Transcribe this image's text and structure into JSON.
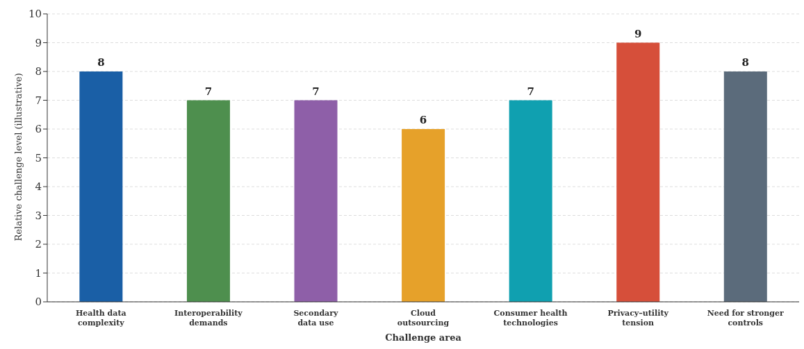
{
  "chart_data": {
    "type": "bar",
    "xlabel": "Challenge area",
    "ylabel": "Relative challenge level (illustrative)",
    "categories": [
      "Health data\ncomplexity",
      "Interoperability\ndemands",
      "Secondary\ndata use",
      "Cloud\noutsourcing",
      "Consumer health\ntechnologies",
      "Privacy–utility\ntension",
      "Need for stronger\ncontrols"
    ],
    "values": [
      8,
      7,
      7,
      6,
      7,
      9,
      8
    ],
    "colors": [
      "#1a5fa6",
      "#4e8f4e",
      "#8e5fa8",
      "#e6a12a",
      "#10a0b0",
      "#d64f3a",
      "#5b6b7b"
    ],
    "ylim": [
      0,
      10
    ],
    "yticks": [
      0,
      1,
      2,
      3,
      4,
      5,
      6,
      7,
      8,
      9,
      10
    ],
    "grid": "y",
    "data_labels": true
  }
}
